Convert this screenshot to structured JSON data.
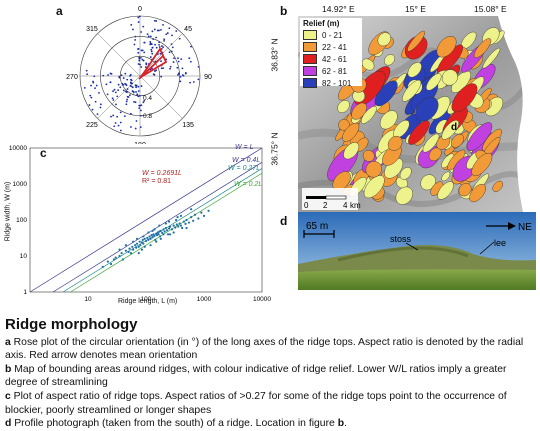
{
  "panel_a": {
    "label": "a",
    "angles": [
      "0",
      "45",
      "90",
      "135",
      "180",
      "225",
      "270",
      "315"
    ],
    "radial_ticks": [
      "0.4",
      "0.8"
    ],
    "colors": {
      "points": "#1a2ca8",
      "arrow": "#d8232a"
    }
  },
  "panel_b": {
    "label": "b",
    "lon_ticks": [
      "14.92° E",
      "15° E",
      "15.08° E"
    ],
    "lat_ticks": [
      "36.83° N",
      "36.75° N"
    ],
    "legend_title": "Relief (m)",
    "legend": [
      {
        "label": "0 - 21",
        "color": "#eef28a"
      },
      {
        "label": "22 - 41",
        "color": "#f29a38"
      },
      {
        "label": "42 - 61",
        "color": "#e02020"
      },
      {
        "label": "62 - 81",
        "color": "#c040e0"
      },
      {
        "label": "82 - 101",
        "color": "#2a40b8"
      }
    ],
    "scale_labels": [
      "0",
      "2",
      "4",
      "km"
    ],
    "location_marker": "d"
  },
  "panel_c": {
    "label": "c",
    "chart_data": {
      "type": "scatter",
      "xlabel": "Ridge length, L (m)",
      "ylabel": "Ridge width, W (m)",
      "x_ticks": [
        "10",
        "100",
        "1000",
        "10000"
      ],
      "y_ticks": [
        "1",
        "10",
        "100",
        "1000",
        "10000"
      ],
      "xlim": [
        1,
        10000
      ],
      "ylim": [
        1,
        10000
      ],
      "log_scale": true,
      "fit_equation": "W = 0.2691L",
      "r_squared": "R² = 0.81",
      "reference_lines": [
        {
          "label": "W = L",
          "ratio": 1.0,
          "color": "#3a3a8c"
        },
        {
          "label": "W = 0.4L",
          "ratio": 0.4,
          "color": "#3a3a8c"
        },
        {
          "label": "W = 0.27L",
          "ratio": 0.27,
          "color": "#1f8a8a"
        },
        {
          "label": "W = 0.2L",
          "ratio": 0.2,
          "color": "#3aa83a"
        }
      ],
      "points": [
        [
          18,
          5
        ],
        [
          22,
          7
        ],
        [
          25,
          6
        ],
        [
          28,
          8
        ],
        [
          30,
          9
        ],
        [
          35,
          10
        ],
        [
          38,
          12
        ],
        [
          40,
          8
        ],
        [
          45,
          14
        ],
        [
          50,
          13
        ],
        [
          52,
          16
        ],
        [
          55,
          12
        ],
        [
          58,
          18
        ],
        [
          60,
          15
        ],
        [
          65,
          20
        ],
        [
          68,
          17
        ],
        [
          70,
          22
        ],
        [
          75,
          18
        ],
        [
          78,
          25
        ],
        [
          80,
          20
        ],
        [
          85,
          24
        ],
        [
          88,
          28
        ],
        [
          90,
          22
        ],
        [
          95,
          30
        ],
        [
          100,
          26
        ],
        [
          105,
          32
        ],
        [
          110,
          28
        ],
        [
          115,
          35
        ],
        [
          120,
          30
        ],
        [
          125,
          38
        ],
        [
          130,
          33
        ],
        [
          135,
          40
        ],
        [
          140,
          36
        ],
        [
          145,
          28
        ],
        [
          150,
          42
        ],
        [
          155,
          38
        ],
        [
          160,
          45
        ],
        [
          165,
          40
        ],
        [
          170,
          48
        ],
        [
          175,
          35
        ],
        [
          180,
          50
        ],
        [
          190,
          44
        ],
        [
          200,
          55
        ],
        [
          210,
          48
        ],
        [
          220,
          60
        ],
        [
          230,
          52
        ],
        [
          240,
          40
        ],
        [
          250,
          58
        ],
        [
          260,
          65
        ],
        [
          280,
          55
        ],
        [
          300,
          70
        ],
        [
          320,
          62
        ],
        [
          340,
          75
        ],
        [
          360,
          66
        ],
        [
          380,
          80
        ],
        [
          400,
          70
        ],
        [
          420,
          60
        ],
        [
          450,
          90
        ],
        [
          480,
          78
        ],
        [
          500,
          100
        ],
        [
          550,
          85
        ],
        [
          600,
          120
        ],
        [
          650,
          95
        ],
        [
          700,
          140
        ],
        [
          800,
          110
        ],
        [
          900,
          160
        ],
        [
          1000,
          130
        ],
        [
          1200,
          180
        ],
        [
          60,
          25
        ],
        [
          90,
          35
        ],
        [
          120,
          20
        ],
        [
          200,
          40
        ],
        [
          300,
          45
        ],
        [
          150,
          25
        ],
        [
          110,
          45
        ],
        [
          250,
          90
        ],
        [
          400,
          130
        ],
        [
          45,
          20
        ],
        [
          70,
          30
        ],
        [
          85,
          15
        ],
        [
          140,
          55
        ],
        [
          180,
          30
        ],
        [
          220,
          80
        ],
        [
          330,
          100
        ],
        [
          500,
          60
        ],
        [
          35,
          15
        ],
        [
          130,
          50
        ],
        [
          95,
          18
        ],
        [
          75,
          12
        ],
        [
          170,
          70
        ],
        [
          260,
          40
        ],
        [
          600,
          200
        ],
        [
          350,
          120
        ]
      ]
    }
  },
  "panel_d": {
    "label": "d",
    "scale_label": "65 m",
    "direction_label": "NE",
    "stoss_label": "stoss",
    "lee_label": "lee"
  },
  "caption": {
    "title": "Ridge morphology",
    "items": [
      {
        "key": "a",
        "text": "Rose plot of the circular orientation (in °) of the long axes of the ridge tops. Aspect ratio is denoted by the radial axis. Red arrow denotes mean orientation"
      },
      {
        "key": "b",
        "text": "Map of bounding areas around ridges, with colour indicative of ridge relief. Lower W/L ratios imply a greater degree of streamlining"
      },
      {
        "key": "c",
        "text": "Plot of aspect ratio of ridge tops. Aspect ratios of >0.27 for some of the ridge tops point to the occurrence of blockier, poorly streamlined or longer shapes"
      },
      {
        "key": "d",
        "text_before": "Profile photograph (taken from the south) of a ridge. Location in figure ",
        "location_ref": "b",
        "text_after": "."
      }
    ]
  }
}
